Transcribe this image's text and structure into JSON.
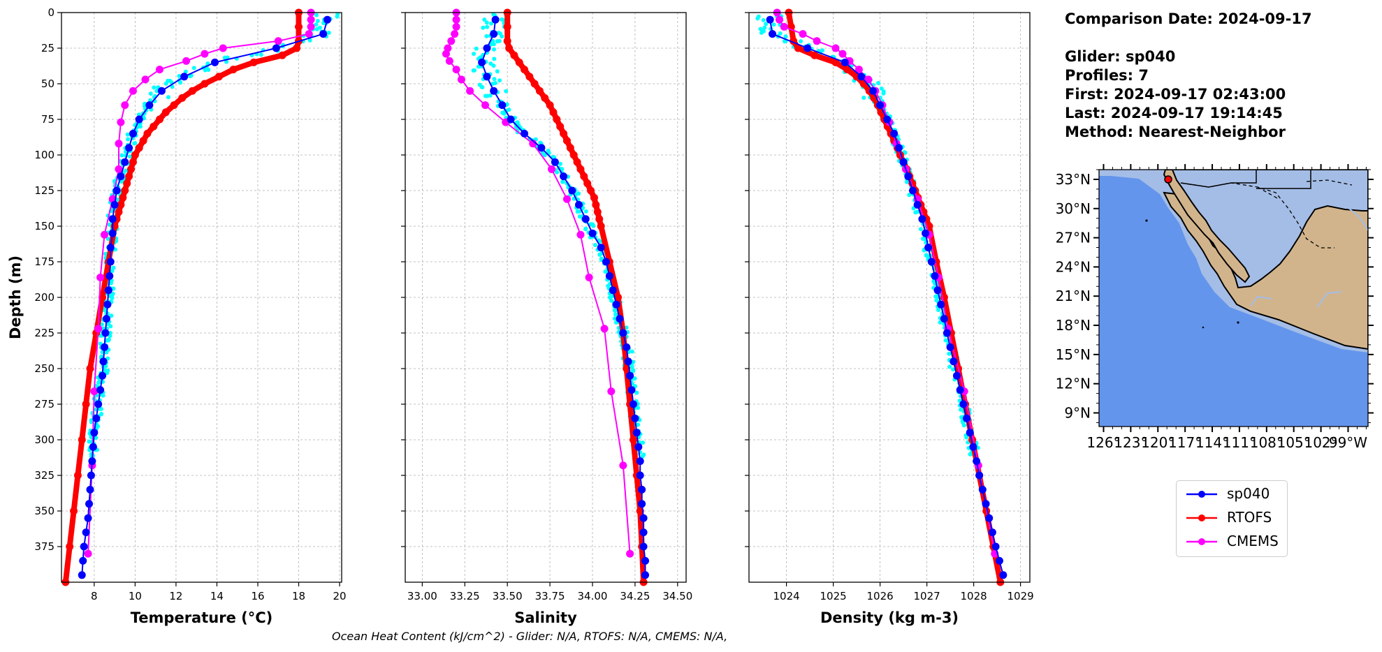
{
  "footer": "Ocean Heat Content (kJ/cm^2) - Glider: N/A,  RTOFS: N/A,  CMEMS: N/A,",
  "info": {
    "date": "Comparison Date: 2024-09-17",
    "glider": "Glider: sp040",
    "profiles": "Profiles: 7",
    "first": "First: 2024-09-17 02:43:00",
    "last": "Last: 2024-09-17 19:14:45",
    "method": "Method: Nearest-Neighbor"
  },
  "legend": [
    {
      "label": "sp040",
      "color": "#0000ff"
    },
    {
      "label": "RTOFS",
      "color": "#ff0000"
    },
    {
      "label": "CMEMS",
      "color": "#ff00ff"
    }
  ],
  "colors": {
    "glider": "#0000ff",
    "glider_raw": "#00ffff",
    "rtofs": "#ff0000",
    "cmems": "#ff00ff",
    "ocean": "#6495ed",
    "shelf": "#a4bde6",
    "land": "#d2b48c",
    "grid": "#b0b0b0"
  },
  "chart_data": [
    {
      "type": "line",
      "xlabel": "Temperature (°C)",
      "ylabel": "Depth (m)",
      "ylim": [
        400,
        0
      ],
      "xlim": [
        6.4,
        20.1
      ],
      "xticks": [
        8,
        10,
        12,
        14,
        16,
        18,
        20
      ],
      "yticks": [
        0,
        25,
        50,
        75,
        100,
        125,
        150,
        175,
        200,
        225,
        250,
        275,
        300,
        325,
        350,
        375
      ],
      "grid": true,
      "series": [
        {
          "name": "sp040",
          "depth": [
            5,
            15,
            25,
            35,
            45,
            55,
            65,
            75,
            85,
            95,
            105,
            115,
            125,
            135,
            145,
            155,
            165,
            175,
            185,
            195,
            205,
            215,
            225,
            235,
            245,
            255,
            265,
            275,
            285,
            295,
            305,
            315,
            325,
            335,
            345,
            355,
            365,
            375,
            385,
            395
          ],
          "values": [
            19.4,
            19.2,
            16.9,
            13.9,
            12.4,
            11.3,
            10.7,
            10.2,
            9.9,
            9.7,
            9.5,
            9.3,
            9.1,
            9.0,
            8.9,
            8.9,
            8.8,
            8.8,
            8.75,
            8.7,
            8.65,
            8.6,
            8.55,
            8.5,
            8.45,
            8.4,
            8.3,
            8.2,
            8.1,
            8.0,
            7.95,
            7.9,
            7.85,
            7.8,
            7.75,
            7.7,
            7.6,
            7.5,
            7.45,
            7.4
          ]
        },
        {
          "name": "RTOFS",
          "depth": [
            0,
            10,
            20,
            25,
            30,
            35,
            40,
            45,
            50,
            55,
            60,
            65,
            70,
            75,
            80,
            85,
            90,
            95,
            100,
            105,
            110,
            115,
            120,
            125,
            130,
            135,
            140,
            145,
            150,
            175,
            200,
            225,
            250,
            275,
            300,
            325,
            350,
            375,
            400
          ],
          "values": [
            18.0,
            18.0,
            18.0,
            17.9,
            17.2,
            15.8,
            14.8,
            14.1,
            13.4,
            12.8,
            12.3,
            11.9,
            11.5,
            11.2,
            10.9,
            10.6,
            10.4,
            10.2,
            10.0,
            9.9,
            9.8,
            9.7,
            9.6,
            9.5,
            9.4,
            9.3,
            9.2,
            9.1,
            9.0,
            8.7,
            8.4,
            8.1,
            7.8,
            7.6,
            7.4,
            7.2,
            7.0,
            6.8,
            6.6
          ]
        },
        {
          "name": "CMEMS",
          "depth": [
            0,
            5,
            10,
            15,
            20,
            25,
            29,
            34,
            40,
            47,
            55,
            65,
            77,
            92,
            110,
            131,
            156,
            186,
            222,
            266,
            318,
            380
          ],
          "values": [
            18.6,
            18.6,
            18.6,
            18.5,
            17.0,
            14.3,
            13.4,
            12.5,
            11.2,
            10.5,
            9.9,
            9.5,
            9.3,
            9.2,
            9.2,
            8.9,
            8.5,
            8.3,
            8.2,
            8.0,
            7.9,
            7.7
          ]
        }
      ]
    },
    {
      "type": "line",
      "xlabel": "Salinity",
      "ylabel": "",
      "ylim": [
        400,
        0
      ],
      "xlim": [
        32.9,
        34.55
      ],
      "xticks": [
        33.0,
        33.25,
        33.5,
        33.75,
        34.0,
        34.25,
        34.5
      ],
      "grid": true,
      "series": [
        {
          "name": "sp040",
          "depth": [
            5,
            15,
            25,
            35,
            45,
            55,
            65,
            75,
            85,
            95,
            105,
            115,
            125,
            135,
            145,
            155,
            165,
            175,
            185,
            195,
            205,
            215,
            225,
            235,
            245,
            255,
            265,
            275,
            285,
            295,
            305,
            315,
            325,
            335,
            345,
            355,
            365,
            375,
            385,
            395
          ],
          "values": [
            33.43,
            33.42,
            33.38,
            33.35,
            33.38,
            33.42,
            33.47,
            33.52,
            33.6,
            33.7,
            33.78,
            33.83,
            33.88,
            33.92,
            33.96,
            34.0,
            34.05,
            34.08,
            34.1,
            34.12,
            34.14,
            34.16,
            34.18,
            34.2,
            34.21,
            34.22,
            34.23,
            34.24,
            34.25,
            34.26,
            34.27,
            34.28,
            34.28,
            34.29,
            34.29,
            34.3,
            34.3,
            34.3,
            34.31,
            34.31
          ]
        },
        {
          "name": "RTOFS",
          "depth": [
            0,
            10,
            20,
            25,
            30,
            35,
            40,
            45,
            50,
            55,
            60,
            65,
            70,
            75,
            80,
            85,
            90,
            95,
            100,
            105,
            110,
            115,
            120,
            125,
            130,
            135,
            140,
            145,
            150,
            175,
            200,
            225,
            250,
            275,
            300,
            325,
            350,
            375,
            400
          ],
          "values": [
            33.5,
            33.5,
            33.5,
            33.51,
            33.54,
            33.57,
            33.6,
            33.63,
            33.66,
            33.69,
            33.72,
            33.75,
            33.77,
            33.79,
            33.81,
            33.83,
            33.85,
            33.87,
            33.89,
            33.91,
            33.93,
            33.95,
            33.97,
            33.99,
            34.01,
            34.02,
            34.03,
            34.04,
            34.05,
            34.1,
            34.15,
            34.18,
            34.2,
            34.22,
            34.24,
            34.26,
            34.28,
            34.29,
            34.3
          ]
        },
        {
          "name": "CMEMS",
          "depth": [
            0,
            5,
            10,
            15,
            20,
            25,
            29,
            34,
            40,
            47,
            55,
            65,
            77,
            92,
            110,
            131,
            156,
            186,
            222,
            266,
            318,
            380
          ],
          "values": [
            33.2,
            33.2,
            33.2,
            33.19,
            33.17,
            33.15,
            33.14,
            33.16,
            33.2,
            33.23,
            33.28,
            33.37,
            33.49,
            33.65,
            33.76,
            33.85,
            33.93,
            33.98,
            34.07,
            34.11,
            34.18,
            34.22
          ]
        }
      ]
    },
    {
      "type": "line",
      "xlabel": "Density (kg m-3)",
      "ylabel": "",
      "ylim": [
        400,
        0
      ],
      "xlim": [
        1023.2,
        1029.2
      ],
      "xticks": [
        1024,
        1025,
        1026,
        1027,
        1028,
        1029
      ],
      "grid": true,
      "series": [
        {
          "name": "sp040",
          "depth": [
            5,
            15,
            25,
            35,
            45,
            55,
            65,
            75,
            85,
            95,
            105,
            115,
            125,
            135,
            145,
            155,
            165,
            175,
            185,
            195,
            205,
            215,
            225,
            235,
            245,
            255,
            265,
            275,
            285,
            295,
            305,
            315,
            325,
            335,
            345,
            355,
            365,
            375,
            385,
            395
          ],
          "values": [
            1023.65,
            1023.7,
            1024.45,
            1025.25,
            1025.6,
            1025.85,
            1026.0,
            1026.15,
            1026.3,
            1026.4,
            1026.5,
            1026.6,
            1026.7,
            1026.8,
            1026.9,
            1026.97,
            1027.03,
            1027.1,
            1027.17,
            1027.23,
            1027.3,
            1027.37,
            1027.43,
            1027.5,
            1027.57,
            1027.64,
            1027.71,
            1027.78,
            1027.85,
            1027.92,
            1027.99,
            1028.06,
            1028.12,
            1028.19,
            1028.26,
            1028.33,
            1028.4,
            1028.47,
            1028.55,
            1028.63
          ]
        },
        {
          "name": "RTOFS",
          "depth": [
            0,
            10,
            20,
            25,
            30,
            35,
            40,
            45,
            50,
            55,
            60,
            65,
            70,
            75,
            80,
            85,
            90,
            95,
            100,
            105,
            110,
            115,
            120,
            125,
            130,
            135,
            140,
            145,
            150,
            175,
            200,
            225,
            250,
            275,
            300,
            325,
            350,
            375,
            400
          ],
          "values": [
            1024.05,
            1024.1,
            1024.15,
            1024.25,
            1024.6,
            1025.05,
            1025.3,
            1025.5,
            1025.65,
            1025.77,
            1025.87,
            1025.95,
            1026.02,
            1026.09,
            1026.16,
            1026.23,
            1026.3,
            1026.37,
            1026.43,
            1026.5,
            1026.57,
            1026.63,
            1026.69,
            1026.75,
            1026.81,
            1026.87,
            1026.93,
            1026.99,
            1027.05,
            1027.2,
            1027.37,
            1027.52,
            1027.67,
            1027.82,
            1027.97,
            1028.12,
            1028.27,
            1028.42,
            1028.57
          ]
        },
        {
          "name": "CMEMS",
          "depth": [
            0,
            5,
            10,
            15,
            20,
            25,
            29,
            34,
            40,
            47,
            55,
            65,
            77,
            92,
            110,
            131,
            156,
            186,
            222,
            266,
            318,
            380
          ],
          "values": [
            1023.8,
            1023.85,
            1023.95,
            1024.35,
            1024.65,
            1025.05,
            1025.2,
            1025.35,
            1025.55,
            1025.75,
            1025.9,
            1026.05,
            1026.2,
            1026.35,
            1026.55,
            1026.8,
            1027.05,
            1027.25,
            1027.45,
            1027.8,
            1028.1,
            1028.45
          ]
        }
      ]
    }
  ],
  "map": {
    "lat_labels": [
      "33°N",
      "30°N",
      "27°N",
      "24°N",
      "21°N",
      "18°N",
      "15°N",
      "12°N",
      "9°N"
    ],
    "lon_labels": [
      "126°",
      "123°",
      "120°",
      "117°",
      "114°",
      "111°",
      "108°",
      "105°",
      "102°",
      "99°W"
    ],
    "glider_position": {
      "lat": 32.4,
      "lon": -119.5
    }
  }
}
